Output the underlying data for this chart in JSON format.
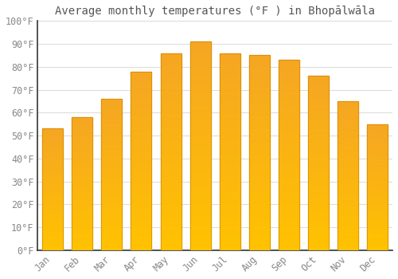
{
  "title": "Average monthly temperatures (°F ) in Bhopālwāla",
  "months": [
    "Jan",
    "Feb",
    "Mar",
    "Apr",
    "May",
    "Jun",
    "Jul",
    "Aug",
    "Sep",
    "Oct",
    "Nov",
    "Dec"
  ],
  "values": [
    53,
    58,
    66,
    78,
    86,
    91,
    86,
    85,
    83,
    76,
    65,
    55
  ],
  "bar_color_orange": "#F5A623",
  "bar_color_gold": "#FFC200",
  "background_color": "#FFFFFF",
  "grid_color": "#DDDDDD",
  "ylim": [
    0,
    100
  ],
  "yticks": [
    0,
    10,
    20,
    30,
    40,
    50,
    60,
    70,
    80,
    90,
    100
  ],
  "ytick_labels": [
    "0°F",
    "10°F",
    "20°F",
    "30°F",
    "40°F",
    "50°F",
    "60°F",
    "70°F",
    "80°F",
    "90°F",
    "100°F"
  ],
  "title_fontsize": 10,
  "tick_fontsize": 8.5,
  "bar_width": 0.7,
  "spine_color": "#333333"
}
